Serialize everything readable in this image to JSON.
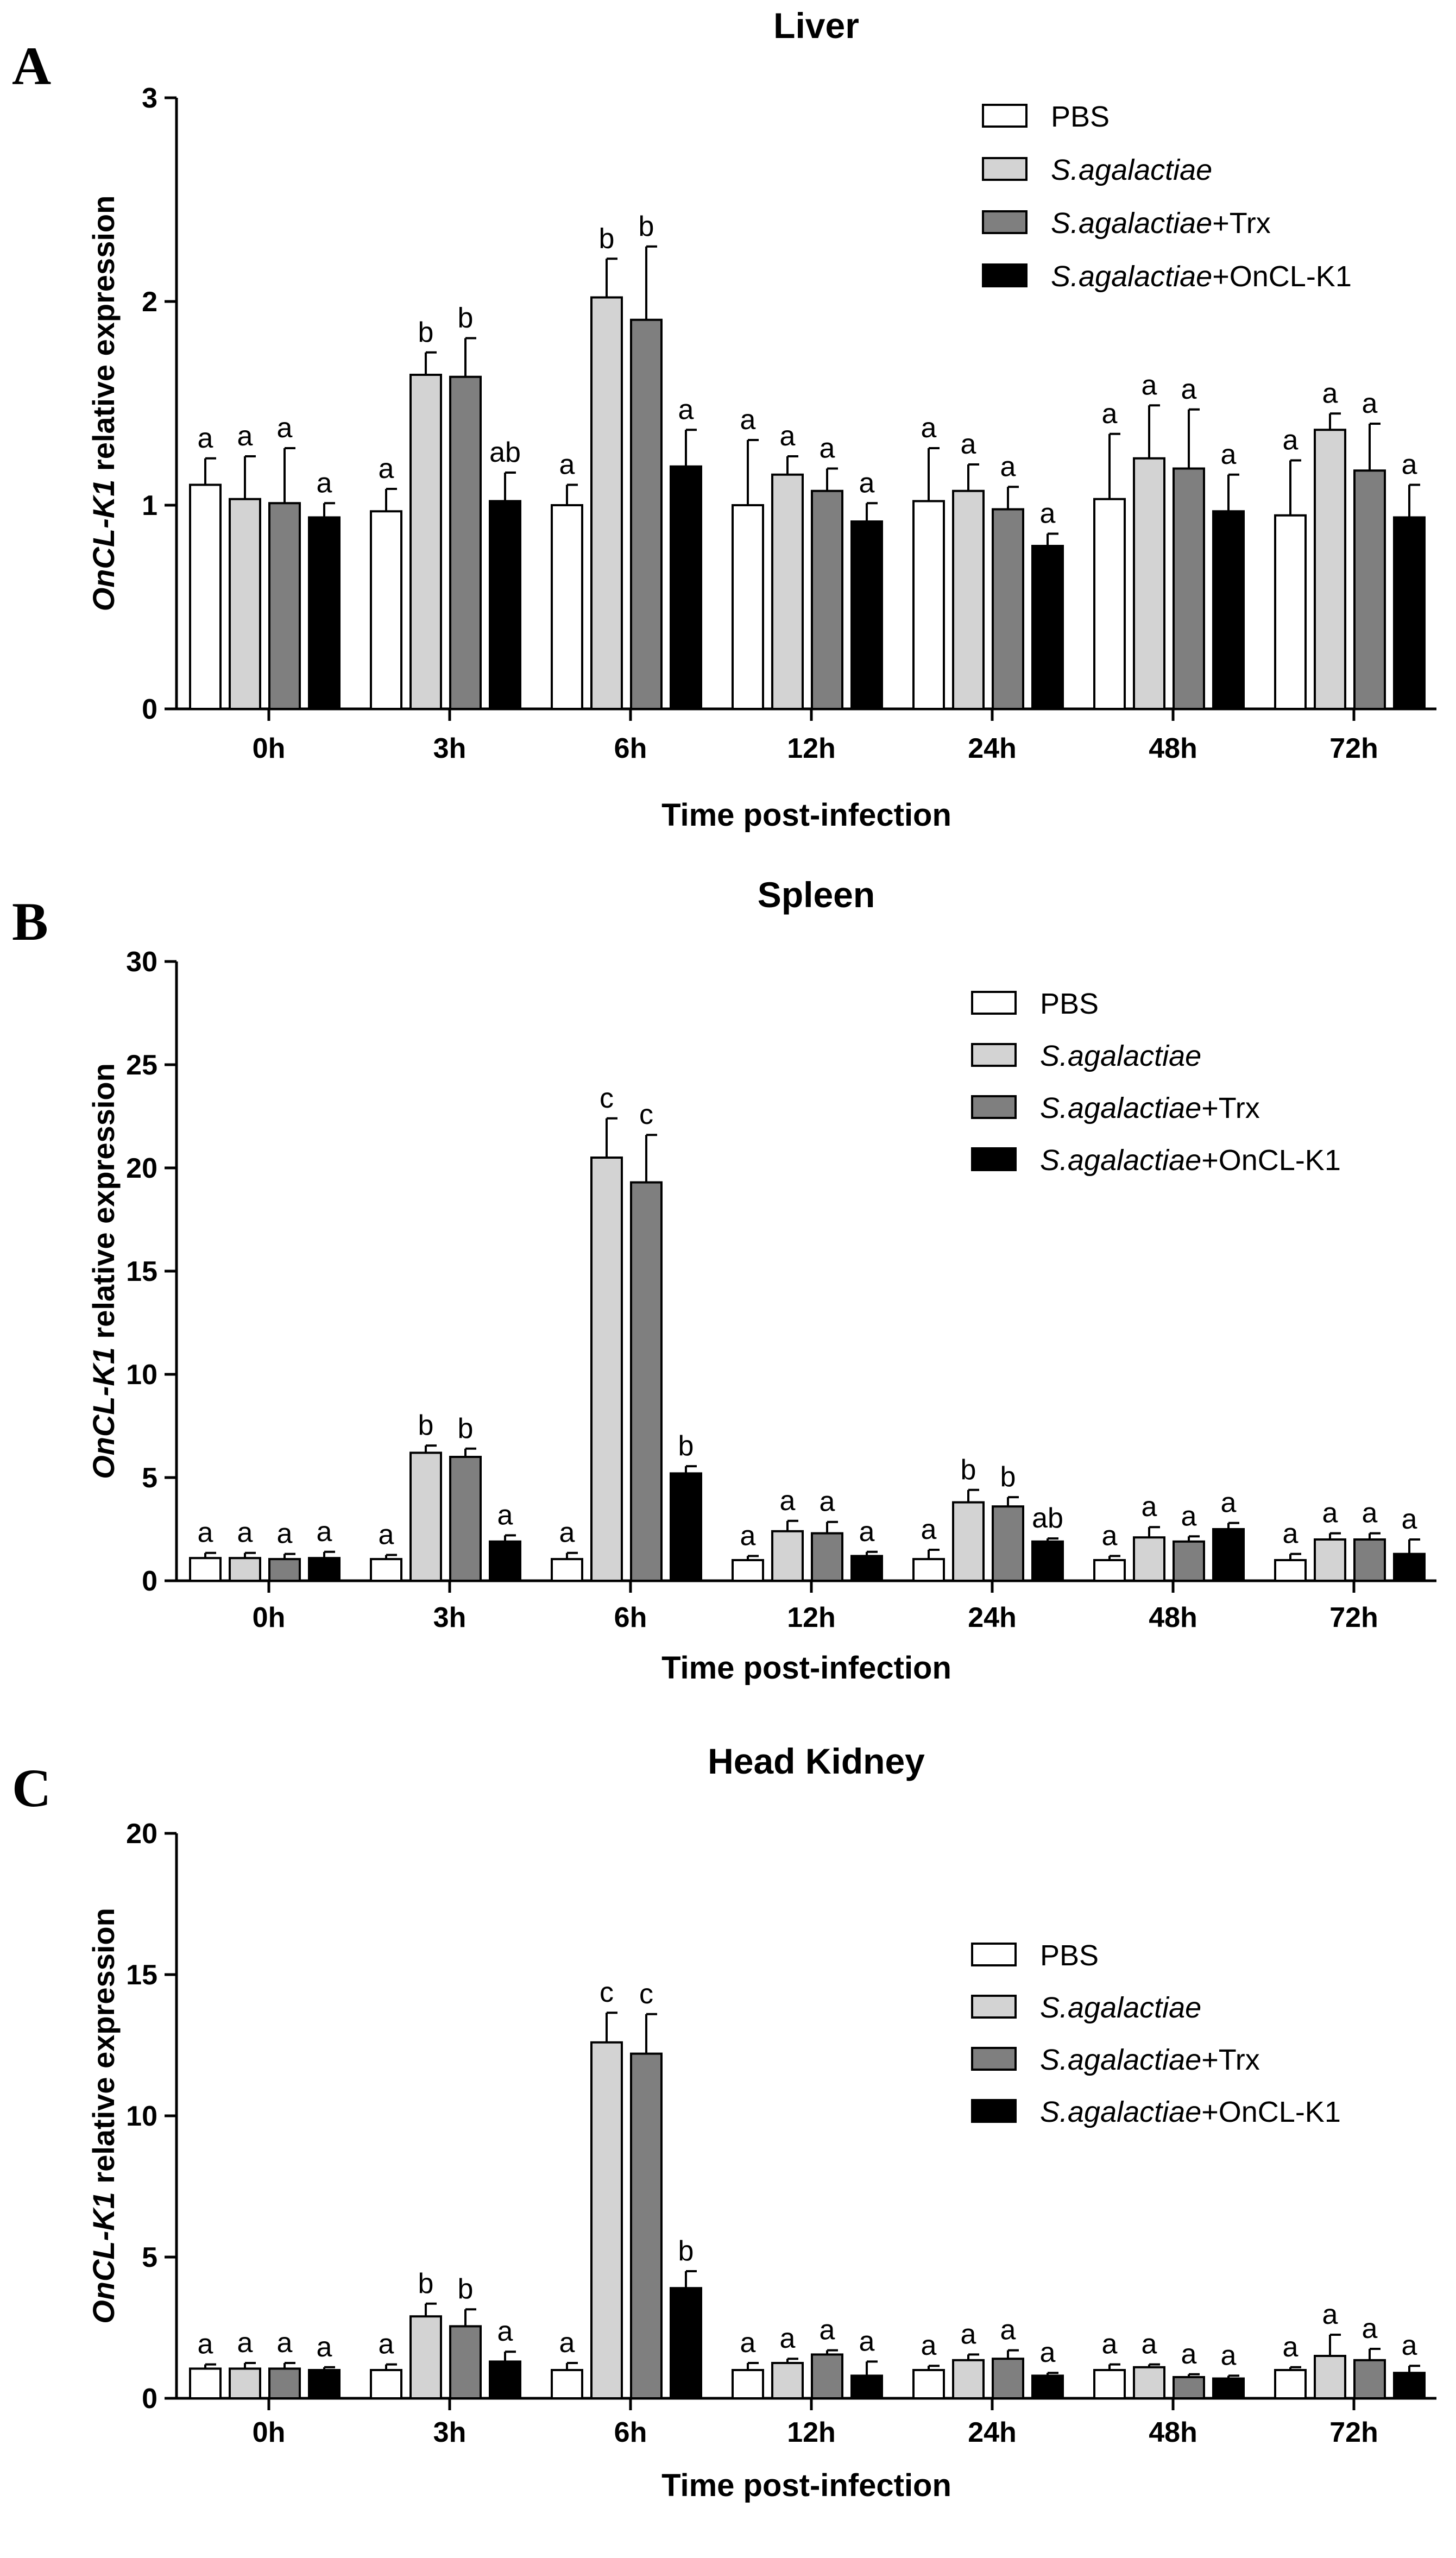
{
  "figure": {
    "panels": [
      {
        "letter": "A",
        "title": "Liver"
      },
      {
        "letter": "B",
        "title": "Spleen"
      },
      {
        "letter": "C",
        "title": "Head Kidney"
      }
    ],
    "ylabel_gene": "OnCL-K1",
    "ylabel_rest": " relative expression",
    "xlabel": "Time post-infection",
    "legend": [
      {
        "italic": "",
        "plain": "PBS",
        "color": "#ffffff"
      },
      {
        "italic": "S.agalactiae",
        "plain": "",
        "color": "#d3d3d3"
      },
      {
        "italic": "S.agalactiae",
        "plain": "+Trx",
        "color": "#7f7f7f"
      },
      {
        "italic": "S.agalactiae",
        "plain": "+OnCL-K1",
        "color": "#000000"
      }
    ]
  },
  "chart_data": [
    {
      "type": "bar",
      "title": "Liver",
      "panel_letter": "A",
      "xlabel": "Time post-infection",
      "ylabel": "OnCL-K1 relative expression",
      "categories": [
        "0h",
        "3h",
        "6h",
        "12h",
        "24h",
        "48h",
        "72h"
      ],
      "ylim": [
        0,
        3
      ],
      "yticks": [
        0,
        1,
        2,
        3
      ],
      "series": [
        {
          "name": "PBS",
          "color": "#ffffff",
          "values": [
            1.1,
            0.97,
            1.0,
            1.0,
            1.02,
            1.03,
            0.95
          ],
          "errors": [
            0.13,
            0.11,
            0.1,
            0.32,
            0.26,
            0.32,
            0.27
          ],
          "labels": [
            "a",
            "a",
            "a",
            "a",
            "a",
            "a",
            "a"
          ]
        },
        {
          "name": "S.agalactiae",
          "color": "#d3d3d3",
          "values": [
            1.03,
            1.64,
            2.02,
            1.15,
            1.07,
            1.23,
            1.37
          ],
          "errors": [
            0.21,
            0.11,
            0.19,
            0.09,
            0.13,
            0.26,
            0.08
          ],
          "labels": [
            "a",
            "b",
            "b",
            "a",
            "a",
            "a",
            "a"
          ]
        },
        {
          "name": "S.agalactiae+Trx",
          "color": "#7f7f7f",
          "values": [
            1.01,
            1.63,
            1.91,
            1.07,
            0.98,
            1.18,
            1.17
          ],
          "errors": [
            0.27,
            0.19,
            0.36,
            0.11,
            0.11,
            0.29,
            0.23
          ],
          "labels": [
            "a",
            "b",
            "b",
            "a",
            "a",
            "a",
            "a"
          ]
        },
        {
          "name": "S.agalactiae+OnCL-K1",
          "color": "#000000",
          "values": [
            0.94,
            1.02,
            1.19,
            0.92,
            0.8,
            0.97,
            0.94
          ],
          "errors": [
            0.07,
            0.14,
            0.18,
            0.09,
            0.06,
            0.18,
            0.16
          ],
          "labels": [
            "a",
            "ab",
            "a",
            "a",
            "a",
            "a",
            "a"
          ]
        }
      ]
    },
    {
      "type": "bar",
      "title": "Spleen",
      "panel_letter": "B",
      "xlabel": "Time post-infection",
      "ylabel": "OnCL-K1 relative expression",
      "categories": [
        "0h",
        "3h",
        "6h",
        "12h",
        "24h",
        "48h",
        "72h"
      ],
      "ylim": [
        0,
        30
      ],
      "yticks": [
        0,
        5,
        10,
        15,
        20,
        25,
        30
      ],
      "series": [
        {
          "name": "PBS",
          "color": "#ffffff",
          "values": [
            1.1,
            1.05,
            1.05,
            1.0,
            1.05,
            1.0,
            1.0
          ],
          "errors": [
            0.25,
            0.2,
            0.3,
            0.2,
            0.45,
            0.2,
            0.3
          ],
          "labels": [
            "a",
            "a",
            "a",
            "a",
            "a",
            "a",
            "a"
          ]
        },
        {
          "name": "S.agalactiae",
          "color": "#d3d3d3",
          "values": [
            1.1,
            6.2,
            20.5,
            2.4,
            3.8,
            2.1,
            2.0
          ],
          "errors": [
            0.25,
            0.35,
            1.9,
            0.5,
            0.6,
            0.5,
            0.3
          ],
          "labels": [
            "a",
            "b",
            "c",
            "a",
            "b",
            "a",
            "a"
          ]
        },
        {
          "name": "S.agalactiae+Trx",
          "color": "#7f7f7f",
          "values": [
            1.05,
            6.0,
            19.3,
            2.3,
            3.6,
            1.9,
            2.0
          ],
          "errors": [
            0.25,
            0.4,
            2.3,
            0.55,
            0.45,
            0.25,
            0.3
          ],
          "labels": [
            "a",
            "b",
            "c",
            "a",
            "b",
            "a",
            "a"
          ]
        },
        {
          "name": "S.agalactiae+OnCL-K1",
          "color": "#000000",
          "values": [
            1.1,
            1.9,
            5.2,
            1.2,
            1.9,
            2.5,
            1.3
          ],
          "errors": [
            0.3,
            0.3,
            0.35,
            0.2,
            0.15,
            0.3,
            0.7
          ],
          "labels": [
            "a",
            "a",
            "b",
            "a",
            "ab",
            "a",
            "a"
          ]
        }
      ]
    },
    {
      "type": "bar",
      "title": "Head Kidney",
      "panel_letter": "C",
      "xlabel": "Time post-infection",
      "ylabel": "OnCL-K1 relative expression",
      "categories": [
        "0h",
        "3h",
        "6h",
        "12h",
        "24h",
        "48h",
        "72h"
      ],
      "ylim": [
        0,
        20
      ],
      "yticks": [
        0,
        5,
        10,
        15,
        20
      ],
      "series": [
        {
          "name": "PBS",
          "color": "#ffffff",
          "values": [
            1.05,
            1.0,
            1.0,
            1.0,
            1.0,
            1.0,
            1.0
          ],
          "errors": [
            0.15,
            0.2,
            0.25,
            0.25,
            0.15,
            0.2,
            0.1
          ],
          "labels": [
            "a",
            "a",
            "a",
            "a",
            "a",
            "a",
            "a"
          ]
        },
        {
          "name": "S.agalactiae",
          "color": "#d3d3d3",
          "values": [
            1.05,
            2.9,
            12.6,
            1.25,
            1.35,
            1.1,
            1.5
          ],
          "errors": [
            0.2,
            0.45,
            1.05,
            0.15,
            0.2,
            0.1,
            0.75
          ],
          "labels": [
            "a",
            "b",
            "c",
            "a",
            "a",
            "a",
            "a"
          ]
        },
        {
          "name": "S.agalactiae+Trx",
          "color": "#7f7f7f",
          "values": [
            1.05,
            2.55,
            12.2,
            1.55,
            1.4,
            0.75,
            1.35
          ],
          "errors": [
            0.2,
            0.6,
            1.4,
            0.15,
            0.3,
            0.1,
            0.4
          ],
          "labels": [
            "a",
            "b",
            "c",
            "a",
            "a",
            "a",
            "a"
          ]
        },
        {
          "name": "S.agalactiae+OnCL-K1",
          "color": "#000000",
          "values": [
            1.0,
            1.3,
            3.9,
            0.8,
            0.8,
            0.7,
            0.9
          ],
          "errors": [
            0.1,
            0.35,
            0.6,
            0.5,
            0.1,
            0.1,
            0.25
          ],
          "labels": [
            "a",
            "a",
            "b",
            "a",
            "a",
            "a",
            "a"
          ]
        }
      ]
    }
  ]
}
